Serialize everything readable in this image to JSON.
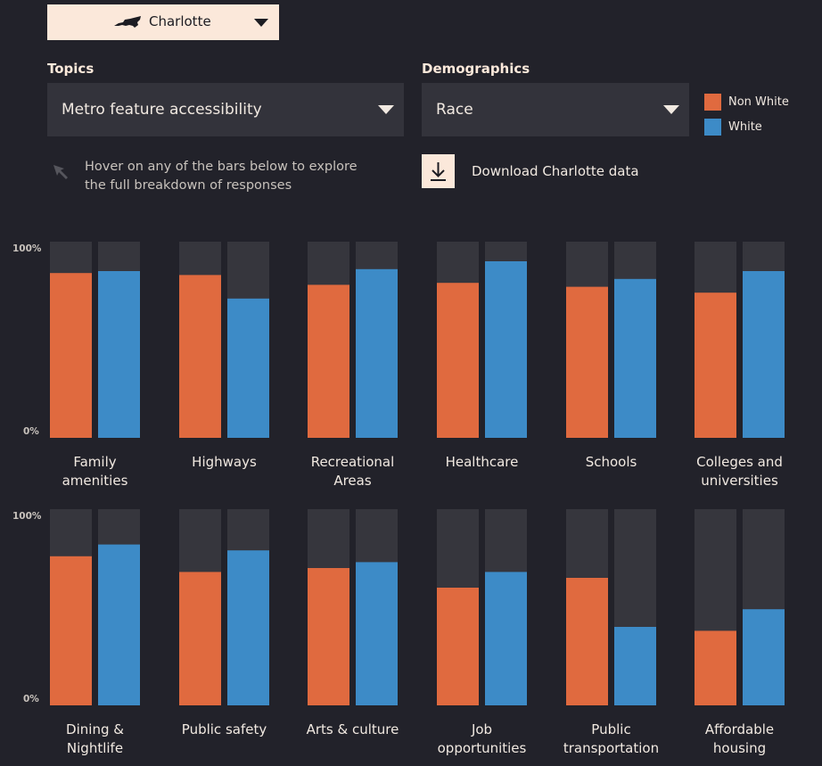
{
  "city_selector": {
    "label": "Charlotte",
    "state_icon": "north-carolina-state-icon"
  },
  "topics": {
    "label": "Topics",
    "value": "Metro feature accessibility"
  },
  "demographics": {
    "label": "Demographics",
    "value": "Race"
  },
  "legend": [
    {
      "label": "Non White",
      "color": "#e06a3f"
    },
    {
      "label": "White",
      "color": "#3d8bc7"
    }
  ],
  "hint": {
    "line1": "Hover on any of the bars below to explore",
    "line2": "the full breakdown of responses"
  },
  "download": {
    "label": "Download Charlotte data"
  },
  "colors": {
    "background": "#22222a",
    "bar_track": "#36363d",
    "non_white": "#e06a3f",
    "white": "#3d8bc7"
  },
  "chart_data": {
    "type": "bar",
    "ylim": [
      0,
      100
    ],
    "ytick_labels": [
      "100%",
      "0%"
    ],
    "categories": [
      [
        "Family",
        "amenities"
      ],
      [
        "Highways"
      ],
      [
        "Recreational",
        "Areas"
      ],
      [
        "Healthcare"
      ],
      [
        "Schools"
      ],
      [
        "Colleges and",
        "universities"
      ],
      [
        "Dining &",
        "Nightlife"
      ],
      [
        "Public safety"
      ],
      [
        "Arts & culture"
      ],
      [
        "Job",
        "opportunities"
      ],
      [
        "Public",
        "transportation"
      ],
      [
        "Affordable",
        "housing"
      ]
    ],
    "series": [
      {
        "name": "Non White",
        "values": [
          84,
          83,
          78,
          79,
          77,
          74,
          76,
          68,
          70,
          60,
          65,
          38
        ]
      },
      {
        "name": "White",
        "values": [
          85,
          71,
          86,
          90,
          81,
          85,
          82,
          79,
          73,
          68,
          40,
          49
        ]
      }
    ]
  }
}
